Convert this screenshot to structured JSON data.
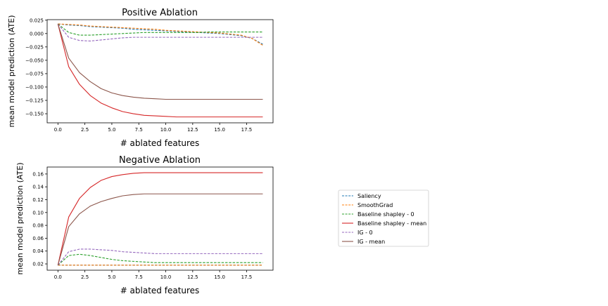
{
  "chart_data": [
    {
      "type": "line",
      "title": "Positive Ablation",
      "xlabel": "# ablated features",
      "ylabel": "mean model prediction (ATE)",
      "xlim": [
        -1.0,
        19.95
      ],
      "ylim": [
        -0.167,
        0.026
      ],
      "xticks": [
        "0.0",
        "2.5",
        "5.0",
        "7.5",
        "10.0",
        "12.5",
        "15.0",
        "17.5"
      ],
      "xtick_values": [
        0,
        2.5,
        5,
        7.5,
        10,
        12.5,
        15,
        17.5
      ],
      "yticks": [
        "0.025",
        "0.000",
        "−0.025",
        "−0.050",
        "−0.075",
        "−0.100",
        "−0.125",
        "−0.150"
      ],
      "ytick_values": [
        0.025,
        0.0,
        -0.025,
        -0.05,
        -0.075,
        -0.1,
        -0.125,
        -0.15
      ],
      "grid": false,
      "x": [
        0,
        1,
        2,
        3,
        4,
        5,
        6,
        7,
        8,
        9,
        10,
        11,
        12,
        13,
        14,
        15,
        16,
        17,
        18,
        19
      ],
      "series": [
        {
          "name": "Saliency",
          "color": "#1f77b4",
          "dash": true,
          "values": [
            0.018,
            0.016,
            0.015,
            0.013,
            0.012,
            0.011,
            0.01,
            0.008,
            0.007,
            0.006,
            0.005,
            0.004,
            0.003,
            0.002,
            0.001,
            0.0,
            -0.002,
            -0.004,
            -0.009,
            -0.02
          ]
        },
        {
          "name": "SmoothGrad",
          "color": "#ff7f0e",
          "dash": true,
          "values": [
            0.018,
            0.017,
            0.016,
            0.014,
            0.013,
            0.012,
            0.011,
            0.01,
            0.009,
            0.008,
            0.006,
            0.005,
            0.004,
            0.003,
            0.002,
            0.001,
            -0.001,
            -0.003,
            -0.009,
            -0.022
          ]
        },
        {
          "name": "Baseline shapley - 0",
          "color": "#2ca02c",
          "dash": true,
          "values": [
            0.018,
            0.002,
            -0.003,
            -0.003,
            -0.002,
            -0.001,
            0.0,
            0.001,
            0.002,
            0.002,
            0.002,
            0.002,
            0.002,
            0.002,
            0.003,
            0.003,
            0.003,
            0.003,
            0.003,
            0.003
          ]
        },
        {
          "name": "Baseline shapley - mean",
          "color": "#d62728",
          "dash": false,
          "values": [
            0.018,
            -0.062,
            -0.095,
            -0.116,
            -0.13,
            -0.139,
            -0.146,
            -0.15,
            -0.153,
            -0.154,
            -0.155,
            -0.156,
            -0.156,
            -0.156,
            -0.156,
            -0.156,
            -0.156,
            -0.156,
            -0.156,
            -0.156
          ]
        },
        {
          "name": "IG - 0",
          "color": "#9467bd",
          "dash": true,
          "values": [
            0.018,
            -0.007,
            -0.013,
            -0.014,
            -0.012,
            -0.01,
            -0.008,
            -0.007,
            -0.007,
            -0.007,
            -0.007,
            -0.007,
            -0.007,
            -0.007,
            -0.007,
            -0.007,
            -0.007,
            -0.007,
            -0.007,
            -0.007
          ]
        },
        {
          "name": "IG - mean",
          "color": "#8c564b",
          "dash": false,
          "values": [
            0.018,
            -0.046,
            -0.073,
            -0.09,
            -0.103,
            -0.111,
            -0.116,
            -0.119,
            -0.121,
            -0.122,
            -0.123,
            -0.123,
            -0.123,
            -0.123,
            -0.123,
            -0.123,
            -0.123,
            -0.123,
            -0.123,
            -0.123
          ]
        }
      ]
    },
    {
      "type": "line",
      "title": "Negative Ablation",
      "xlabel": "# ablated features",
      "ylabel": "mean model prediction (ATE)",
      "xlim": [
        -1.0,
        19.95
      ],
      "ylim": [
        0.0102,
        0.1708
      ],
      "xticks": [
        "0.0",
        "2.5",
        "5.0",
        "7.5",
        "10.0",
        "12.5",
        "15.0",
        "17.5"
      ],
      "xtick_values": [
        0,
        2.5,
        5,
        7.5,
        10,
        12.5,
        15,
        17.5
      ],
      "yticks": [
        "0.16",
        "0.14",
        "0.12",
        "0.10",
        "0.08",
        "0.06",
        "0.04",
        "0.02"
      ],
      "ytick_values": [
        0.16,
        0.14,
        0.12,
        0.1,
        0.08,
        0.06,
        0.04,
        0.02
      ],
      "grid": false,
      "x": [
        0,
        1,
        2,
        3,
        4,
        5,
        6,
        7,
        8,
        9,
        10,
        11,
        12,
        13,
        14,
        15,
        16,
        17,
        18,
        19
      ],
      "series": [
        {
          "name": "Saliency",
          "color": "#1f77b4",
          "dash": true,
          "values": [
            0.018,
            0.018,
            0.018,
            0.018,
            0.018,
            0.018,
            0.018,
            0.018,
            0.018,
            0.018,
            0.018,
            0.018,
            0.018,
            0.018,
            0.018,
            0.018,
            0.018,
            0.018,
            0.018,
            0.018
          ]
        },
        {
          "name": "SmoothGrad",
          "color": "#ff7f0e",
          "dash": true,
          "values": [
            0.018,
            0.018,
            0.018,
            0.018,
            0.018,
            0.018,
            0.018,
            0.018,
            0.018,
            0.018,
            0.018,
            0.018,
            0.018,
            0.018,
            0.018,
            0.018,
            0.018,
            0.018,
            0.018,
            0.018
          ]
        },
        {
          "name": "Baseline shapley - 0",
          "color": "#2ca02c",
          "dash": true,
          "values": [
            0.018,
            0.033,
            0.035,
            0.033,
            0.03,
            0.027,
            0.025,
            0.024,
            0.023,
            0.022,
            0.022,
            0.022,
            0.022,
            0.022,
            0.022,
            0.022,
            0.022,
            0.022,
            0.022,
            0.022
          ]
        },
        {
          "name": "Baseline shapley - mean",
          "color": "#d62728",
          "dash": false,
          "values": [
            0.018,
            0.093,
            0.122,
            0.139,
            0.15,
            0.156,
            0.159,
            0.161,
            0.162,
            0.162,
            0.162,
            0.162,
            0.162,
            0.162,
            0.162,
            0.162,
            0.162,
            0.162,
            0.162,
            0.162
          ]
        },
        {
          "name": "IG - 0",
          "color": "#9467bd",
          "dash": true,
          "values": [
            0.018,
            0.039,
            0.043,
            0.043,
            0.042,
            0.041,
            0.039,
            0.038,
            0.037,
            0.036,
            0.036,
            0.036,
            0.036,
            0.036,
            0.036,
            0.036,
            0.036,
            0.036,
            0.036,
            0.036
          ]
        },
        {
          "name": "IG - mean",
          "color": "#8c564b",
          "dash": false,
          "values": [
            0.018,
            0.078,
            0.098,
            0.11,
            0.117,
            0.122,
            0.126,
            0.128,
            0.129,
            0.129,
            0.129,
            0.129,
            0.129,
            0.129,
            0.129,
            0.129,
            0.129,
            0.129,
            0.129,
            0.129
          ]
        }
      ]
    }
  ],
  "legend": {
    "placement": "right",
    "entries": [
      {
        "label": "Saliency",
        "color": "#1f77b4",
        "dash": true
      },
      {
        "label": "SmoothGrad",
        "color": "#ff7f0e",
        "dash": true
      },
      {
        "label": "Baseline shapley - 0",
        "color": "#2ca02c",
        "dash": true
      },
      {
        "label": "Baseline shapley - mean",
        "color": "#d62728",
        "dash": false
      },
      {
        "label": "IG - 0",
        "color": "#9467bd",
        "dash": true
      },
      {
        "label": "IG - mean",
        "color": "#8c564b",
        "dash": false
      }
    ]
  }
}
